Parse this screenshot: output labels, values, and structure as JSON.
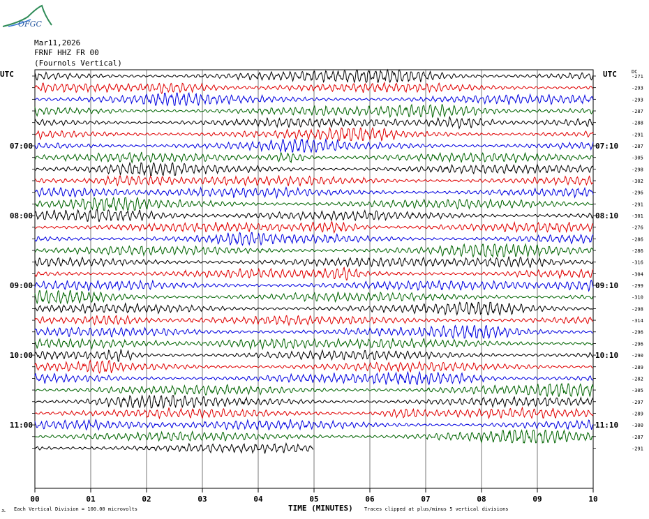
{
  "logo": {
    "text": "OFGC"
  },
  "header": {
    "date": "Mar11,2026",
    "station": "FRNF HHZ FR 00",
    "location": "(Fournols Vertical)"
  },
  "axes": {
    "left_label": "UTC",
    "right_label": "UTC",
    "dc_label": "DC",
    "xlabel": "TIME (MINUTES)"
  },
  "footer": {
    "scale_note": "Each Vertical Division =  100.00 microvolts",
    "clip_note": "Traces clipped at plus/minus 5 vertical divisions",
    "corner_mark": "JL"
  },
  "chart_data": {
    "type": "line",
    "title": "",
    "x_ticks": [
      "00",
      "01",
      "02",
      "03",
      "04",
      "05",
      "06",
      "07",
      "08",
      "09",
      "10"
    ],
    "xlim": [
      0,
      10
    ],
    "left_hour_labels": [
      {
        "row": 6,
        "label": "07:00"
      },
      {
        "row": 12,
        "label": "08:00"
      },
      {
        "row": 18,
        "label": "09:00"
      },
      {
        "row": 24,
        "label": "10:00"
      },
      {
        "row": 30,
        "label": "11:00"
      }
    ],
    "right_hour_labels": [
      {
        "row": 6,
        "label": "07:10"
      },
      {
        "row": 12,
        "label": "08:10"
      },
      {
        "row": 18,
        "label": "09:10"
      },
      {
        "row": 24,
        "label": "10:10"
      },
      {
        "row": 30,
        "label": "11:10"
      }
    ],
    "trace_colors": [
      "#000000",
      "#e00000",
      "#0000e0",
      "#006400"
    ],
    "dc_offsets": [
      -271,
      -293,
      -293,
      -287,
      -288,
      -291,
      -287,
      -305,
      -298,
      -302,
      -296,
      -291,
      -301,
      -276,
      -286,
      -286,
      -316,
      -304,
      -299,
      -310,
      -298,
      -314,
      -296,
      -296,
      -290,
      -289,
      -282,
      -305,
      -297,
      -289,
      -300,
      -287,
      -291
    ],
    "last_trace_end_minute": 5,
    "grid": true
  }
}
